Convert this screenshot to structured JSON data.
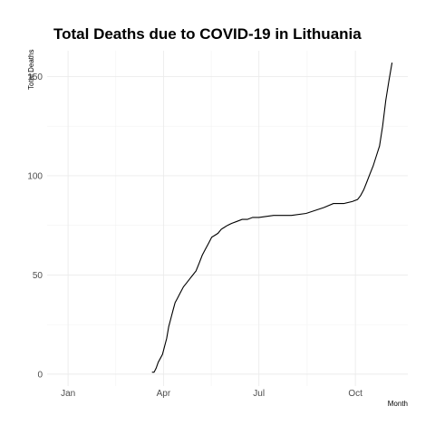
{
  "chart_data": {
    "type": "line",
    "title": "Total Deaths due to COVID-19 in Lithuania",
    "xlabel": "Month",
    "ylabel": "Total Deaths",
    "x_ticks": [
      "Jan",
      "Apr",
      "Jul",
      "Oct"
    ],
    "x_tick_dates": [
      "2020-01-01",
      "2020-04-01",
      "2020-07-01",
      "2020-10-01"
    ],
    "xlim": [
      "2019-12-12",
      "2020-11-20"
    ],
    "y_ticks": [
      0,
      50,
      100,
      150
    ],
    "ylim": [
      -6,
      163
    ],
    "grid": true,
    "legend": "none",
    "line_color": "#000000",
    "series": [
      {
        "x": [
          "2020-03-21",
          "2020-03-23",
          "2020-03-25",
          "2020-03-27",
          "2020-03-29",
          "2020-03-31",
          "2020-04-02",
          "2020-04-04",
          "2020-04-06",
          "2020-04-08",
          "2020-04-10",
          "2020-04-12",
          "2020-04-14",
          "2020-04-16",
          "2020-04-18",
          "2020-04-20",
          "2020-04-23",
          "2020-04-26",
          "2020-04-29",
          "2020-05-02",
          "2020-05-05",
          "2020-05-08",
          "2020-05-11",
          "2020-05-14",
          "2020-05-17",
          "2020-05-20",
          "2020-05-23",
          "2020-05-26",
          "2020-05-29",
          "2020-06-01",
          "2020-06-05",
          "2020-06-10",
          "2020-06-15",
          "2020-06-20",
          "2020-06-25",
          "2020-07-01",
          "2020-07-15",
          "2020-08-01",
          "2020-08-15",
          "2020-09-01",
          "2020-09-10",
          "2020-09-20",
          "2020-09-28",
          "2020-10-03",
          "2020-10-06",
          "2020-10-09",
          "2020-10-12",
          "2020-10-15",
          "2020-10-18",
          "2020-10-21",
          "2020-10-24",
          "2020-10-27",
          "2020-10-30",
          "2020-11-02",
          "2020-11-05"
        ],
        "y": [
          1,
          1,
          3,
          6,
          8,
          10,
          14,
          18,
          24,
          28,
          32,
          36,
          38,
          40,
          42,
          44,
          46,
          48,
          50,
          52,
          56,
          60,
          63,
          66,
          69,
          70,
          71,
          73,
          74,
          75,
          76,
          77,
          78,
          78,
          79,
          79,
          80,
          80,
          81,
          84,
          86,
          86,
          87,
          88,
          90,
          93,
          97,
          101,
          105,
          110,
          115,
          125,
          138,
          148,
          157
        ]
      }
    ]
  }
}
